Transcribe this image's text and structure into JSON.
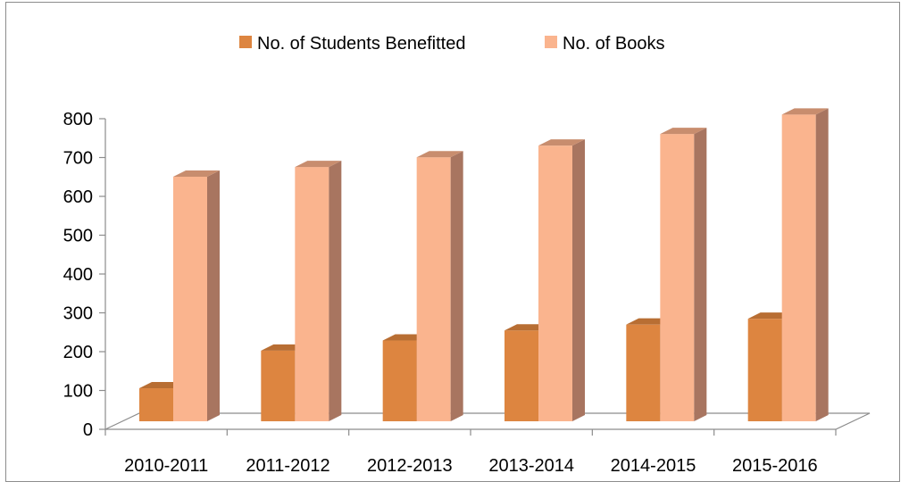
{
  "chart_data": {
    "type": "bar",
    "style": "3d-clustered-column",
    "categories": [
      "2010-2011",
      "2011-2012",
      "2012-2013",
      "2013-2014",
      "2014-2015",
      "2015-2016"
    ],
    "series": [
      {
        "name": "No. of Students Benefitted",
        "values": [
          85,
          182,
          208,
          234,
          249,
          264
        ],
        "color": "#dd8540",
        "side_color": "#a86530",
        "top_color": "#b86e33"
      },
      {
        "name": "No. of Books",
        "values": [
          630,
          655,
          680,
          710,
          740,
          790
        ],
        "color": "#fab48e",
        "side_color": "#a87560",
        "top_color": "#c88d6e"
      }
    ],
    "ylim": [
      0,
      800
    ],
    "yticks": [
      0,
      100,
      200,
      300,
      400,
      500,
      600,
      700,
      800
    ],
    "legend_position": "top-center",
    "grid": false
  }
}
